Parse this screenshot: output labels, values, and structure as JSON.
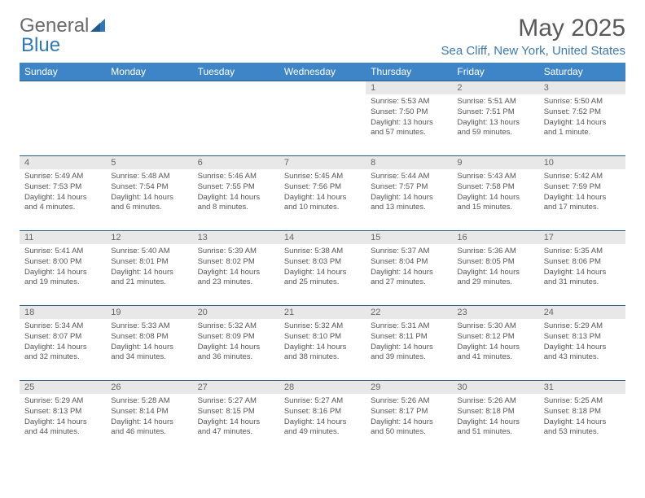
{
  "brand": {
    "part1": "General",
    "part2": "Blue"
  },
  "title": "May 2025",
  "location": "Sea Cliff, New York, United States",
  "colors": {
    "header_bg": "#3d85c6",
    "header_text": "#ffffff",
    "day_bg": "#e8e8e8",
    "border": "#2f5b85",
    "text": "#555555",
    "location_text": "#3d7ab0"
  },
  "weekdays": [
    "Sunday",
    "Monday",
    "Tuesday",
    "Wednesday",
    "Thursday",
    "Friday",
    "Saturday"
  ],
  "weeks": [
    [
      null,
      null,
      null,
      null,
      {
        "n": "1",
        "sr": "5:53 AM",
        "ss": "7:50 PM",
        "dl": "13 hours and 57 minutes."
      },
      {
        "n": "2",
        "sr": "5:51 AM",
        "ss": "7:51 PM",
        "dl": "13 hours and 59 minutes."
      },
      {
        "n": "3",
        "sr": "5:50 AM",
        "ss": "7:52 PM",
        "dl": "14 hours and 1 minute."
      }
    ],
    [
      {
        "n": "4",
        "sr": "5:49 AM",
        "ss": "7:53 PM",
        "dl": "14 hours and 4 minutes."
      },
      {
        "n": "5",
        "sr": "5:48 AM",
        "ss": "7:54 PM",
        "dl": "14 hours and 6 minutes."
      },
      {
        "n": "6",
        "sr": "5:46 AM",
        "ss": "7:55 PM",
        "dl": "14 hours and 8 minutes."
      },
      {
        "n": "7",
        "sr": "5:45 AM",
        "ss": "7:56 PM",
        "dl": "14 hours and 10 minutes."
      },
      {
        "n": "8",
        "sr": "5:44 AM",
        "ss": "7:57 PM",
        "dl": "14 hours and 13 minutes."
      },
      {
        "n": "9",
        "sr": "5:43 AM",
        "ss": "7:58 PM",
        "dl": "14 hours and 15 minutes."
      },
      {
        "n": "10",
        "sr": "5:42 AM",
        "ss": "7:59 PM",
        "dl": "14 hours and 17 minutes."
      }
    ],
    [
      {
        "n": "11",
        "sr": "5:41 AM",
        "ss": "8:00 PM",
        "dl": "14 hours and 19 minutes."
      },
      {
        "n": "12",
        "sr": "5:40 AM",
        "ss": "8:01 PM",
        "dl": "14 hours and 21 minutes."
      },
      {
        "n": "13",
        "sr": "5:39 AM",
        "ss": "8:02 PM",
        "dl": "14 hours and 23 minutes."
      },
      {
        "n": "14",
        "sr": "5:38 AM",
        "ss": "8:03 PM",
        "dl": "14 hours and 25 minutes."
      },
      {
        "n": "15",
        "sr": "5:37 AM",
        "ss": "8:04 PM",
        "dl": "14 hours and 27 minutes."
      },
      {
        "n": "16",
        "sr": "5:36 AM",
        "ss": "8:05 PM",
        "dl": "14 hours and 29 minutes."
      },
      {
        "n": "17",
        "sr": "5:35 AM",
        "ss": "8:06 PM",
        "dl": "14 hours and 31 minutes."
      }
    ],
    [
      {
        "n": "18",
        "sr": "5:34 AM",
        "ss": "8:07 PM",
        "dl": "14 hours and 32 minutes."
      },
      {
        "n": "19",
        "sr": "5:33 AM",
        "ss": "8:08 PM",
        "dl": "14 hours and 34 minutes."
      },
      {
        "n": "20",
        "sr": "5:32 AM",
        "ss": "8:09 PM",
        "dl": "14 hours and 36 minutes."
      },
      {
        "n": "21",
        "sr": "5:32 AM",
        "ss": "8:10 PM",
        "dl": "14 hours and 38 minutes."
      },
      {
        "n": "22",
        "sr": "5:31 AM",
        "ss": "8:11 PM",
        "dl": "14 hours and 39 minutes."
      },
      {
        "n": "23",
        "sr": "5:30 AM",
        "ss": "8:12 PM",
        "dl": "14 hours and 41 minutes."
      },
      {
        "n": "24",
        "sr": "5:29 AM",
        "ss": "8:13 PM",
        "dl": "14 hours and 43 minutes."
      }
    ],
    [
      {
        "n": "25",
        "sr": "5:29 AM",
        "ss": "8:13 PM",
        "dl": "14 hours and 44 minutes."
      },
      {
        "n": "26",
        "sr": "5:28 AM",
        "ss": "8:14 PM",
        "dl": "14 hours and 46 minutes."
      },
      {
        "n": "27",
        "sr": "5:27 AM",
        "ss": "8:15 PM",
        "dl": "14 hours and 47 minutes."
      },
      {
        "n": "28",
        "sr": "5:27 AM",
        "ss": "8:16 PM",
        "dl": "14 hours and 49 minutes."
      },
      {
        "n": "29",
        "sr": "5:26 AM",
        "ss": "8:17 PM",
        "dl": "14 hours and 50 minutes."
      },
      {
        "n": "30",
        "sr": "5:26 AM",
        "ss": "8:18 PM",
        "dl": "14 hours and 51 minutes."
      },
      {
        "n": "31",
        "sr": "5:25 AM",
        "ss": "8:18 PM",
        "dl": "14 hours and 53 minutes."
      }
    ]
  ],
  "labels": {
    "sunrise": "Sunrise:",
    "sunset": "Sunset:",
    "daylight": "Daylight:"
  }
}
